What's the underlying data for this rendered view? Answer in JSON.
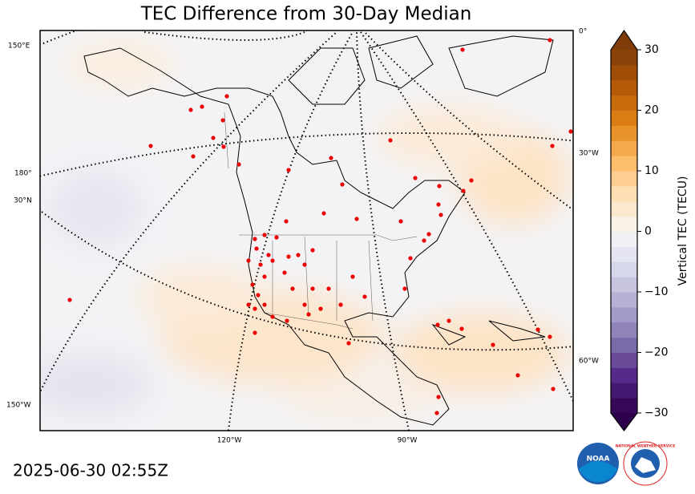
{
  "title": "TEC Difference from 30-Day Median",
  "timestamp": "2025-06-30 02:55Z",
  "colorbar": {
    "label": "Vertical TEC (TECU)",
    "lim": [
      -30,
      30
    ],
    "ticks": [
      {
        "value": -30,
        "label": "−30"
      },
      {
        "value": -20,
        "label": "−20"
      },
      {
        "value": -10,
        "label": "−10"
      },
      0,
      10,
      20,
      30
    ]
  },
  "graticule_labels": {
    "left": [
      "150°E",
      "180°",
      "30°N",
      "150°W"
    ],
    "right": [
      "0°",
      "30°W",
      "60°W"
    ],
    "bottom": [
      "120°W",
      "90°W"
    ]
  },
  "logos": {
    "noaa": "NOAA",
    "nws": "NATIONAL WEATHER SERVICE"
  }
}
